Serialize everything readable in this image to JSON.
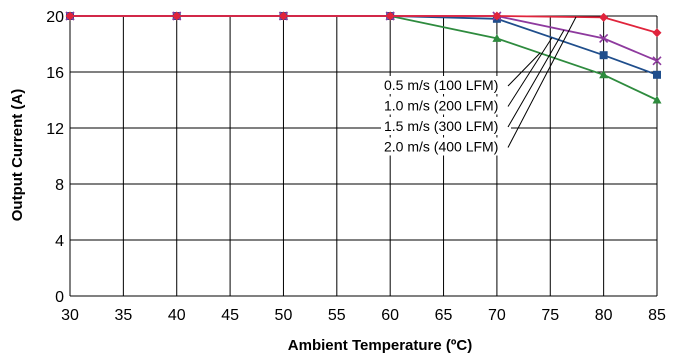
{
  "chart_data": {
    "type": "line",
    "xlabel": "Ambient Temperature (ºC)",
    "ylabel": "Output Current (A)",
    "xlim": [
      30,
      85
    ],
    "ylim": [
      0,
      20
    ],
    "xticks": [
      "30",
      "35",
      "40",
      "45",
      "50",
      "55",
      "60",
      "65",
      "70",
      "75",
      "80",
      "85"
    ],
    "yticks": [
      "0",
      "4",
      "8",
      "12",
      "16",
      "20"
    ],
    "grid": true,
    "legend_position": "center-right",
    "series": [
      {
        "name": "0.5 m/s (100 LFM)",
        "color": "#2e8b3e",
        "marker": "triangle",
        "x": [
          30,
          40,
          50,
          60,
          70,
          80,
          85
        ],
        "y": [
          20,
          20,
          20,
          20,
          18.4,
          15.8,
          14.0
        ]
      },
      {
        "name": "1.0 m/s (200 LFM)",
        "color": "#1f4e8c",
        "marker": "square",
        "x": [
          30,
          40,
          50,
          60,
          70,
          80,
          85
        ],
        "y": [
          20,
          20,
          20,
          20,
          19.8,
          17.2,
          15.8
        ]
      },
      {
        "name": "1.5 m/s (300 LFM)",
        "color": "#8e3a9e",
        "marker": "x",
        "x": [
          30,
          40,
          50,
          60,
          70,
          80,
          85
        ],
        "y": [
          20,
          20,
          20,
          20,
          20,
          18.4,
          16.8
        ]
      },
      {
        "name": "2.0 m/s (400 LFM)",
        "color": "#e0243c",
        "marker": "diamond",
        "x": [
          30,
          40,
          50,
          60,
          70,
          80,
          85
        ],
        "y": [
          20,
          20,
          20,
          20,
          20,
          19.9,
          18.8
        ]
      }
    ]
  }
}
